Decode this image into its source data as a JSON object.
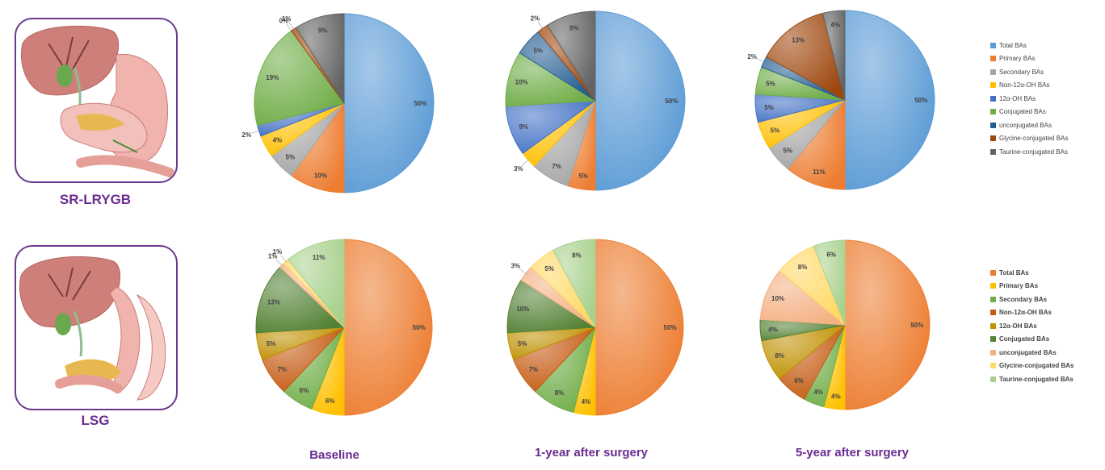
{
  "groups": {
    "sr_lrygb": "SR-LRYGB",
    "lsg": "LSG"
  },
  "columns": [
    "Baseline",
    "1-year after surgery",
    "5-year after surgery"
  ],
  "legend_rows": [
    {
      "labels": [
        "Total BAs",
        "Primary BAs",
        "Secondary BAs",
        "Non-12α-OH BAs",
        "12α-OH BAs",
        "Conjugated BAs",
        "unconjugated BAs",
        "Glycine-conjugated BAs",
        "Taurine-conjugated BAs"
      ],
      "colors": [
        "#5b9bd5",
        "#ed7d31",
        "#a5a5a5",
        "#ffc000",
        "#4472c4",
        "#70ad47",
        "#255e91",
        "#9e480e",
        "#636363"
      ]
    },
    {
      "labels": [
        "Total BAs",
        "Primary BAs",
        "Secondary BAs",
        "Non-12α-OH BAs",
        "12α-OH BAs",
        "Conjugated BAs",
        "unconjugated BAs",
        "Glycine-conjugated BAs",
        "Taurine-conjugated BAs"
      ],
      "colors": [
        "#ed7d31",
        "#ffc000",
        "#70ad47",
        "#c55a11",
        "#bf9000",
        "#548235",
        "#f4b183",
        "#ffd966",
        "#a9d18e"
      ]
    }
  ],
  "chart_data": [
    {
      "type": "pie",
      "group": "SR-LRYGB",
      "timepoint": "Baseline",
      "labels": [
        "Total BAs",
        "Primary BAs",
        "Secondary BAs",
        "Non-12α-OH BAs",
        "12α-OH BAs",
        "Conjugated BAs",
        "unconjugated BAs",
        "Glycine-conjugated BAs",
        "Taurine-conjugated BAs"
      ],
      "values": [
        50,
        10,
        5,
        4,
        2,
        19,
        0,
        1,
        9
      ]
    },
    {
      "type": "pie",
      "group": "SR-LRYGB",
      "timepoint": "1-year after surgery",
      "labels": [
        "Total BAs",
        "Primary BAs",
        "Secondary BAs",
        "Non-12α-OH BAs",
        "12α-OH BAs",
        "Conjugated BAs",
        "unconjugated BAs",
        "Glycine-conjugated BAs",
        "Taurine-conjugated BAs"
      ],
      "values": [
        50,
        5,
        7,
        3,
        9,
        10,
        5,
        2,
        9
      ]
    },
    {
      "type": "pie",
      "group": "SR-LRYGB",
      "timepoint": "5-year after surgery",
      "labels": [
        "Total BAs",
        "Primary BAs",
        "Secondary BAs",
        "Non-12α-OH BAs",
        "12α-OH BAs",
        "Conjugated BAs",
        "unconjugated BAs",
        "Glycine-conjugated BAs",
        "Taurine-conjugated BAs"
      ],
      "values": [
        50,
        11,
        5,
        5,
        5,
        5,
        2,
        13,
        4
      ]
    },
    {
      "type": "pie",
      "group": "LSG",
      "timepoint": "Baseline",
      "labels": [
        "Total BAs",
        "Primary BAs",
        "Secondary BAs",
        "Non-12α-OH BAs",
        "12α-OH BAs",
        "Conjugated BAs",
        "unconjugated BAs",
        "Glycine-conjugated BAs",
        "Taurine-conjugated BAs"
      ],
      "values": [
        50,
        6,
        6,
        7,
        5,
        13,
        1,
        1,
        11
      ]
    },
    {
      "type": "pie",
      "group": "LSG",
      "timepoint": "1-year after surgery",
      "labels": [
        "Total BAs",
        "Primary BAs",
        "Secondary BAs",
        "Non-12α-OH BAs",
        "12α-OH BAs",
        "Conjugated BAs",
        "unconjugated BAs",
        "Glycine-conjugated BAs",
        "Taurine-conjugated BAs"
      ],
      "values": [
        50,
        4,
        8,
        7,
        5,
        10,
        3,
        5,
        8
      ]
    },
    {
      "type": "pie",
      "group": "LSG",
      "timepoint": "5-year after surgery",
      "labels": [
        "Total BAs",
        "Primary BAs",
        "Secondary BAs",
        "Non-12α-OH BAs",
        "12α-OH BAs",
        "Conjugated BAs",
        "unconjugated BAs",
        "Glycine-conjugated BAs",
        "Taurine-conjugated BAs"
      ],
      "values": [
        50,
        4,
        4,
        6,
        8,
        4,
        10,
        8,
        6
      ]
    }
  ]
}
